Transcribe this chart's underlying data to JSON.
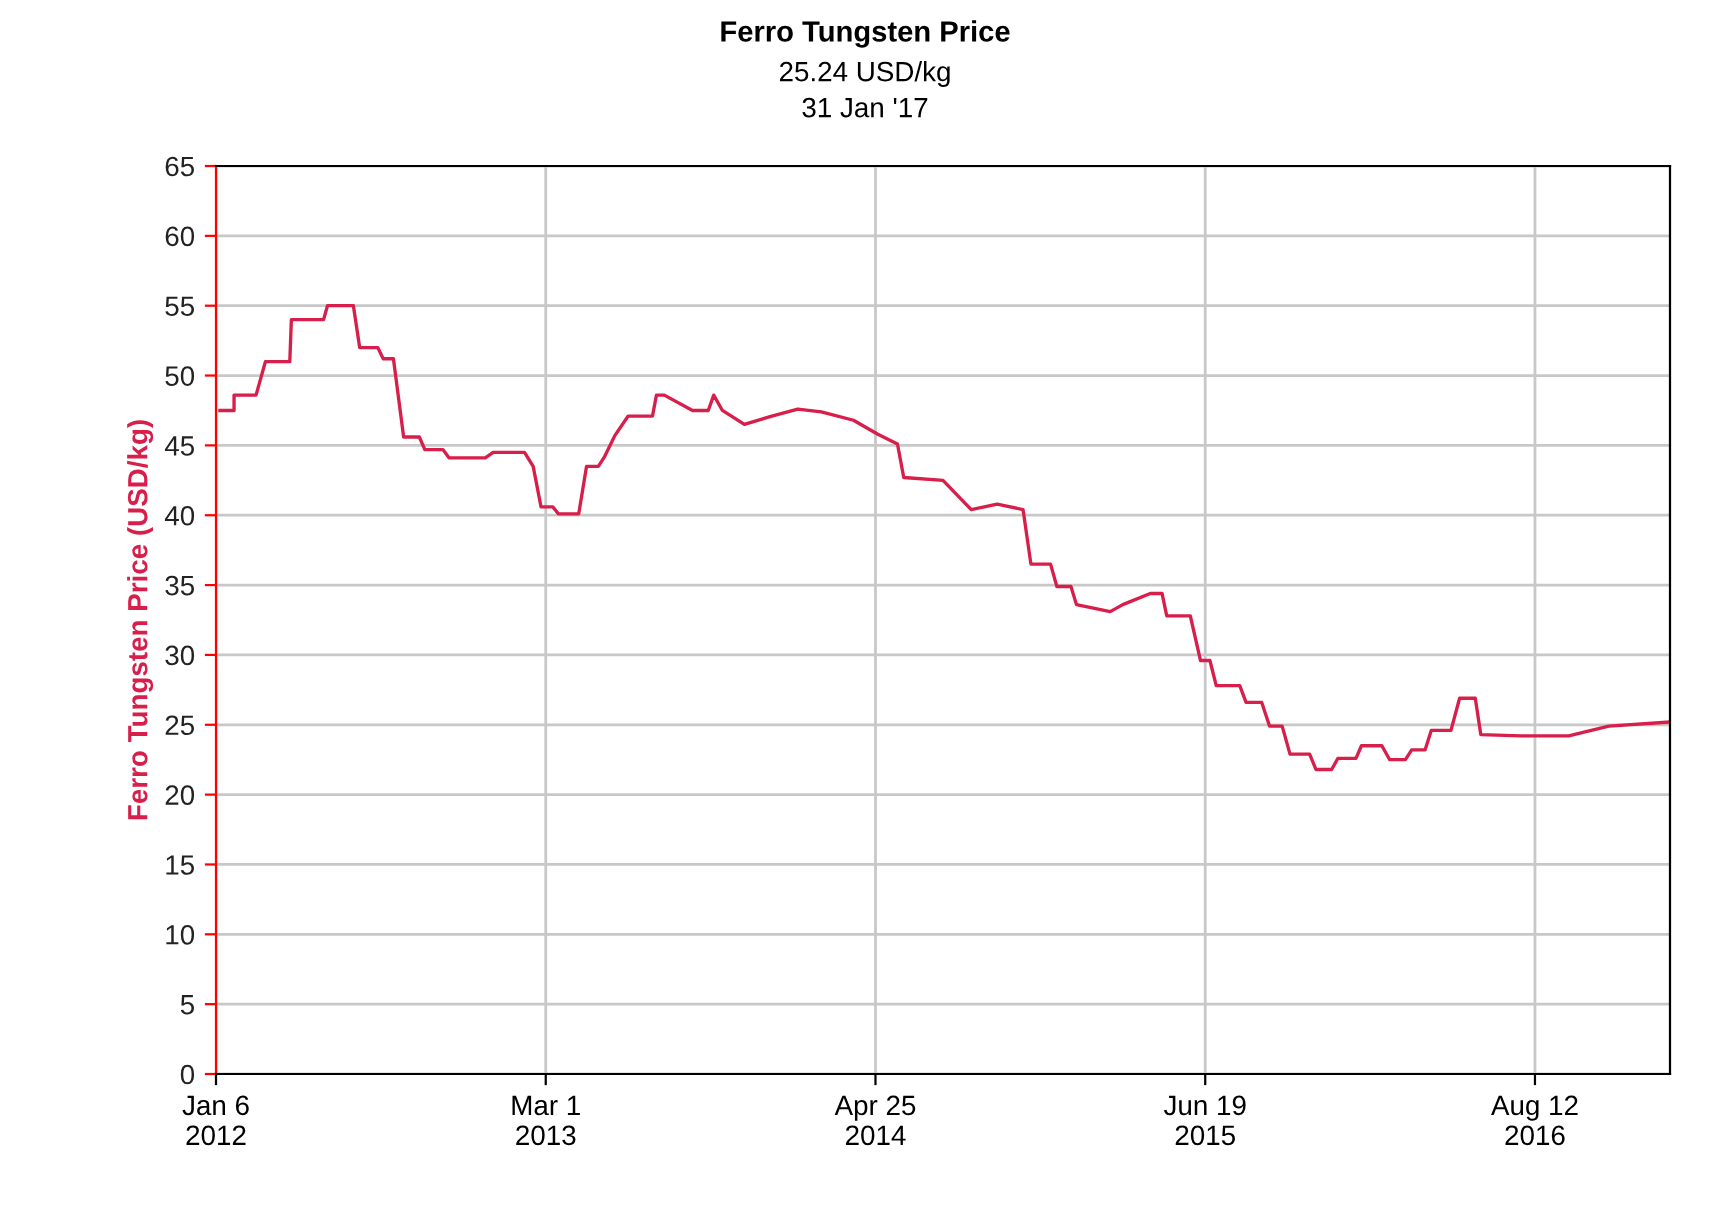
{
  "chart_data": {
    "type": "line",
    "title": "Ferro Tungsten Price",
    "subtitle": "25.24 USD/kg",
    "annotations": [
      "31 Jan '17"
    ],
    "ylabel": "Ferro Tungsten Price (USD/kg)",
    "xlim": [
      "2012-01-06",
      "2017-01-31"
    ],
    "xticks": [
      {
        "value": "2012-01-06",
        "label": "Jan 6\n2012"
      },
      {
        "value": "2013-03-01",
        "label": "Mar 1\n2013"
      },
      {
        "value": "2014-04-25",
        "label": "Apr 25\n2014"
      },
      {
        "value": "2015-06-19",
        "label": "Jun 19\n2015"
      },
      {
        "value": "2016-08-12",
        "label": "Aug 12\n2016"
      }
    ],
    "ylim": [
      0,
      65
    ],
    "yticks": [
      0,
      5,
      10,
      15,
      20,
      25,
      30,
      35,
      40,
      45,
      50,
      55,
      60,
      65
    ],
    "grid": true,
    "legend": false,
    "marker": "none",
    "line_style": "solid",
    "series": [
      {
        "color": "#d81e4a",
        "x": [
          "2012-01-11",
          "2012-01-29",
          "2012-01-29",
          "2012-02-26",
          "2012-03-09",
          "2012-04-09",
          "2012-04-11",
          "2012-05-22",
          "2012-05-27",
          "2012-06-29",
          "2012-07-07",
          "2012-07-30",
          "2012-08-06",
          "2012-08-19",
          "2012-09-01",
          "2012-09-21",
          "2012-09-28",
          "2012-10-21",
          "2012-10-29",
          "2012-12-14",
          "2012-12-24",
          "2013-02-02",
          "2013-02-13",
          "2013-02-23",
          "2013-03-10",
          "2013-03-17",
          "2013-04-12",
          "2013-04-22",
          "2013-05-07",
          "2013-05-15",
          "2013-05-28",
          "2013-06-14",
          "2013-07-15",
          "2013-07-20",
          "2013-07-30",
          "2013-09-04",
          "2013-09-24",
          "2013-10-01",
          "2013-10-12",
          "2013-11-09",
          "2013-12-14",
          "2014-01-16",
          "2014-02-15",
          "2014-03-28",
          "2014-04-28",
          "2014-05-23",
          "2014-05-31",
          "2014-07-20",
          "2014-08-25",
          "2014-09-27",
          "2014-10-30",
          "2014-11-09",
          "2014-12-04",
          "2014-12-12",
          "2014-12-30",
          "2015-01-06",
          "2015-02-18",
          "2015-03-06",
          "2015-04-10",
          "2015-04-25",
          "2015-05-01",
          "2015-05-31",
          "2015-06-13",
          "2015-06-25",
          "2015-07-03",
          "2015-08-02",
          "2015-08-10",
          "2015-08-30",
          "2015-09-09",
          "2015-09-25",
          "2015-10-05",
          "2015-10-30",
          "2015-11-07",
          "2015-11-27",
          "2015-12-05",
          "2015-12-28",
          "2016-01-04",
          "2016-01-30",
          "2016-02-09",
          "2016-02-29",
          "2016-03-08",
          "2016-03-25",
          "2016-04-02",
          "2016-04-27",
          "2016-05-08",
          "2016-05-28",
          "2016-06-04",
          "2016-07-25",
          "2016-09-24",
          "2016-11-14",
          "2017-01-31"
        ],
        "values": [
          47.5,
          47.5,
          48.6,
          48.6,
          51,
          51,
          54,
          54,
          55,
          55,
          52,
          52,
          51.2,
          51.2,
          45.6,
          45.6,
          44.7,
          44.7,
          44.1,
          44.1,
          44.5,
          44.5,
          43.5,
          40.6,
          40.6,
          40.1,
          40.1,
          43.5,
          43.5,
          44.2,
          45.7,
          47.1,
          47.1,
          48.6,
          48.6,
          47.5,
          47.5,
          48.6,
          47.5,
          46.5,
          47.1,
          47.6,
          47.4,
          46.8,
          45.8,
          45.1,
          42.7,
          42.5,
          40.4,
          40.8,
          40.4,
          36.5,
          36.5,
          34.9,
          34.9,
          33.6,
          33.1,
          33.6,
          34.4,
          34.4,
          32.8,
          32.8,
          29.6,
          29.6,
          27.8,
          27.8,
          26.6,
          26.6,
          24.9,
          24.9,
          22.9,
          22.9,
          21.8,
          21.8,
          22.6,
          22.6,
          23.5,
          23.5,
          22.5,
          22.5,
          23.2,
          23.2,
          24.6,
          24.6,
          26.9,
          26.9,
          24.3,
          24.2,
          24.2,
          24.9,
          25.2
        ]
      }
    ]
  }
}
